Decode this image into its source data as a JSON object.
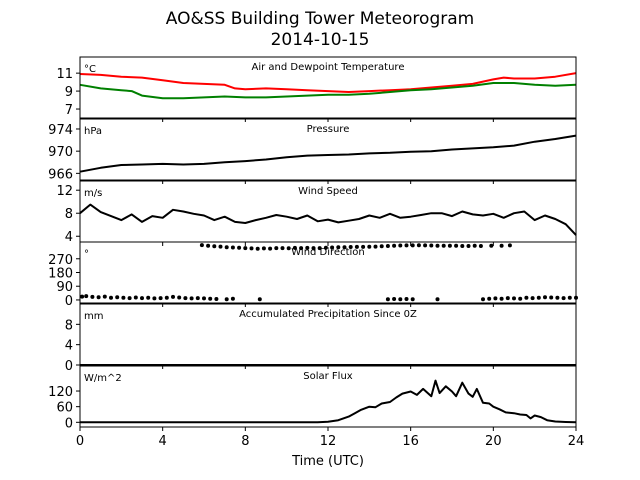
{
  "title": "AO&SS Building Tower Meteorogram",
  "subtitle": "2014-10-15",
  "chart_data": [
    {
      "type": "line",
      "title": "Air and Dewpoint Temperature",
      "ylabel": "°C",
      "ylim": [
        6,
        12.8
      ],
      "yticks": [
        7,
        9,
        11
      ],
      "xlim": [
        0,
        24
      ],
      "series": [
        {
          "color": "#ff0000",
          "x": [
            0,
            1,
            2,
            3,
            4,
            5,
            6,
            7,
            7.5,
            8,
            9,
            10,
            11,
            12,
            13,
            14,
            15,
            16,
            17,
            18,
            19,
            20,
            20.5,
            21,
            22,
            23,
            24
          ],
          "y": [
            10.9,
            10.8,
            10.6,
            10.5,
            10.2,
            9.9,
            9.8,
            9.7,
            9.3,
            9.2,
            9.3,
            9.2,
            9.1,
            9.0,
            8.9,
            9.0,
            9.1,
            9.2,
            9.4,
            9.6,
            9.8,
            10.3,
            10.5,
            10.4,
            10.4,
            10.6,
            11.0
          ]
        },
        {
          "color": "#008000",
          "x": [
            0,
            1,
            2,
            2.5,
            3,
            4,
            5,
            6,
            7,
            8,
            9,
            10,
            11,
            12,
            13,
            14,
            15,
            16,
            17,
            18,
            19,
            20,
            21,
            22,
            23,
            24
          ],
          "y": [
            9.7,
            9.3,
            9.1,
            9.0,
            8.5,
            8.2,
            8.2,
            8.3,
            8.4,
            8.3,
            8.3,
            8.4,
            8.5,
            8.6,
            8.6,
            8.7,
            8.9,
            9.1,
            9.2,
            9.4,
            9.6,
            9.9,
            9.9,
            9.7,
            9.6,
            9.7
          ]
        }
      ]
    },
    {
      "type": "line",
      "title": "Pressure",
      "ylabel": "hPa",
      "ylim": [
        964.8,
        975.8
      ],
      "yticks": [
        966,
        970,
        974
      ],
      "xlim": [
        0,
        24
      ],
      "series": [
        {
          "color": "#000000",
          "x": [
            0,
            1,
            2,
            3,
            4,
            5,
            6,
            7,
            8,
            9,
            10,
            11,
            12,
            13,
            14,
            15,
            16,
            17,
            18,
            19,
            20,
            21,
            22,
            23,
            24
          ],
          "y": [
            966.3,
            967.0,
            967.5,
            967.6,
            967.7,
            967.6,
            967.7,
            968.0,
            968.2,
            968.5,
            968.9,
            969.2,
            969.3,
            969.4,
            969.6,
            969.7,
            969.9,
            970.0,
            970.3,
            970.5,
            970.7,
            971.0,
            971.7,
            972.2,
            972.8
          ]
        }
      ]
    },
    {
      "type": "line",
      "title": "Wind Speed",
      "ylabel": "m/s",
      "ylim": [
        3,
        13.6
      ],
      "yticks": [
        4,
        8,
        12
      ],
      "xlim": [
        0,
        24
      ],
      "series": [
        {
          "color": "#000000",
          "x": [
            0,
            0.5,
            1,
            1.5,
            2,
            2.5,
            3,
            3.5,
            4,
            4.5,
            5,
            5.5,
            6,
            6.5,
            7,
            7.5,
            8,
            8.5,
            9,
            9.5,
            10,
            10.5,
            11,
            11.5,
            12,
            12.5,
            13,
            13.5,
            14,
            14.5,
            15,
            15.5,
            16,
            16.5,
            17,
            17.5,
            18,
            18.5,
            19,
            19.5,
            20,
            20.5,
            21,
            21.5,
            22,
            22.5,
            23,
            23.5,
            24
          ],
          "y": [
            8,
            9.5,
            8.2,
            7.5,
            6.8,
            7.8,
            6.5,
            7.5,
            7.2,
            8.6,
            8.3,
            7.9,
            7.6,
            6.8,
            7.4,
            6.5,
            6.3,
            6.8,
            7.2,
            7.7,
            7.4,
            7.0,
            7.6,
            6.6,
            6.9,
            6.4,
            6.7,
            7.0,
            7.6,
            7.2,
            7.9,
            7.2,
            7.4,
            7.7,
            8.0,
            8.0,
            7.5,
            8.3,
            7.8,
            7.6,
            7.9,
            7.2,
            8.0,
            8.3,
            6.8,
            7.6,
            7.0,
            6.1,
            4.2
          ]
        }
      ]
    },
    {
      "type": "scatter",
      "title": "Wind Direction",
      "ylabel": "°",
      "ylim": [
        -20,
        380
      ],
      "yticks": [
        0,
        90,
        180,
        270
      ],
      "xlim": [
        0,
        24
      ],
      "points": [
        [
          0.1,
          22
        ],
        [
          0.3,
          25
        ],
        [
          0.6,
          20
        ],
        [
          0.9,
          18
        ],
        [
          1.2,
          22
        ],
        [
          1.5,
          15
        ],
        [
          1.8,
          18
        ],
        [
          2.1,
          15
        ],
        [
          2.4,
          12
        ],
        [
          2.7,
          16
        ],
        [
          3.0,
          12
        ],
        [
          3.3,
          14
        ],
        [
          3.6,
          10
        ],
        [
          3.9,
          12
        ],
        [
          4.2,
          15
        ],
        [
          4.5,
          20
        ],
        [
          4.8,
          16
        ],
        [
          5.1,
          12
        ],
        [
          5.4,
          10
        ],
        [
          5.7,
          12
        ],
        [
          6.0,
          10
        ],
        [
          6.3,
          8
        ],
        [
          6.6,
          6
        ],
        [
          7.1,
          5
        ],
        [
          7.4,
          8
        ],
        [
          8.7,
          5
        ],
        [
          5.9,
          360
        ],
        [
          6.2,
          355
        ],
        [
          6.5,
          352
        ],
        [
          6.8,
          350
        ],
        [
          7.1,
          346
        ],
        [
          7.4,
          344
        ],
        [
          7.7,
          342
        ],
        [
          8.0,
          340
        ],
        [
          8.3,
          338
        ],
        [
          8.6,
          336
        ],
        [
          8.9,
          338
        ],
        [
          9.2,
          337
        ],
        [
          9.5,
          340
        ],
        [
          9.8,
          340
        ],
        [
          10.1,
          339
        ],
        [
          10.4,
          341
        ],
        [
          10.7,
          340
        ],
        [
          11.0,
          341
        ],
        [
          11.3,
          340
        ],
        [
          11.6,
          340
        ],
        [
          11.9,
          342
        ],
        [
          12.2,
          344
        ],
        [
          12.5,
          345
        ],
        [
          12.8,
          346
        ],
        [
          13.1,
          347
        ],
        [
          13.4,
          348
        ],
        [
          13.7,
          348
        ],
        [
          14.0,
          349
        ],
        [
          14.3,
          350
        ],
        [
          14.6,
          352
        ],
        [
          14.9,
          354
        ],
        [
          15.2,
          356
        ],
        [
          15.5,
          357
        ],
        [
          15.8,
          358
        ],
        [
          16.1,
          358
        ],
        [
          16.4,
          359
        ],
        [
          16.7,
          358
        ],
        [
          17.0,
          357
        ],
        [
          17.3,
          356
        ],
        [
          17.6,
          356
        ],
        [
          17.9,
          355
        ],
        [
          18.2,
          355
        ],
        [
          18.5,
          354
        ],
        [
          18.8,
          354
        ],
        [
          19.1,
          355
        ],
        [
          19.4,
          354
        ],
        [
          19.9,
          355
        ],
        [
          20.4,
          356
        ],
        [
          20.8,
          358
        ],
        [
          14.9,
          5
        ],
        [
          15.2,
          6
        ],
        [
          15.5,
          5
        ],
        [
          15.8,
          6
        ],
        [
          16.1,
          5
        ],
        [
          17.3,
          4
        ],
        [
          19.5,
          5
        ],
        [
          19.8,
          8
        ],
        [
          20.1,
          10
        ],
        [
          20.4,
          8
        ],
        [
          20.7,
          12
        ],
        [
          21.0,
          10
        ],
        [
          21.3,
          8
        ],
        [
          21.6,
          14
        ],
        [
          21.9,
          12
        ],
        [
          22.2,
          15
        ],
        [
          22.5,
          18
        ],
        [
          22.8,
          16
        ],
        [
          23.1,
          14
        ],
        [
          23.4,
          12
        ],
        [
          23.7,
          14
        ],
        [
          24.0,
          15
        ]
      ]
    },
    {
      "type": "line",
      "title": "Accumulated Precipitation Since 0Z",
      "ylabel": "mm",
      "ylim": [
        0,
        12
      ],
      "yticks": [
        0,
        4,
        8
      ],
      "xlim": [
        0,
        24
      ],
      "series": [
        {
          "color": "#000000",
          "x": [
            0,
            24
          ],
          "y": [
            0,
            0
          ]
        }
      ]
    },
    {
      "type": "line",
      "title": "Solar Flux",
      "ylabel": "W/m^2",
      "ylim": [
        -18,
        216
      ],
      "yticks": [
        0,
        60,
        120
      ],
      "xlim": [
        0,
        24
      ],
      "xticks": [
        0,
        4,
        8,
        12,
        16,
        20,
        24
      ],
      "xlabel": "Time (UTC)",
      "series": [
        {
          "color": "#000000",
          "x": [
            0,
            11.5,
            12,
            12.5,
            13,
            13.3,
            13.6,
            14,
            14.3,
            14.6,
            15,
            15.3,
            15.6,
            16,
            16.3,
            16.6,
            17,
            17.2,
            17.4,
            17.7,
            18,
            18.2,
            18.5,
            18.8,
            19,
            19.2,
            19.5,
            19.8,
            20,
            20.3,
            20.6,
            21,
            21.3,
            21.6,
            21.8,
            22,
            22.3,
            22.6,
            23,
            23.5,
            24
          ],
          "y": [
            0,
            0,
            2,
            8,
            22,
            35,
            48,
            60,
            58,
            72,
            78,
            95,
            110,
            118,
            105,
            128,
            100,
            160,
            112,
            138,
            118,
            100,
            152,
            110,
            98,
            128,
            75,
            72,
            60,
            50,
            38,
            35,
            30,
            28,
            15,
            26,
            20,
            8,
            3,
            1,
            0
          ]
        }
      ]
    }
  ]
}
